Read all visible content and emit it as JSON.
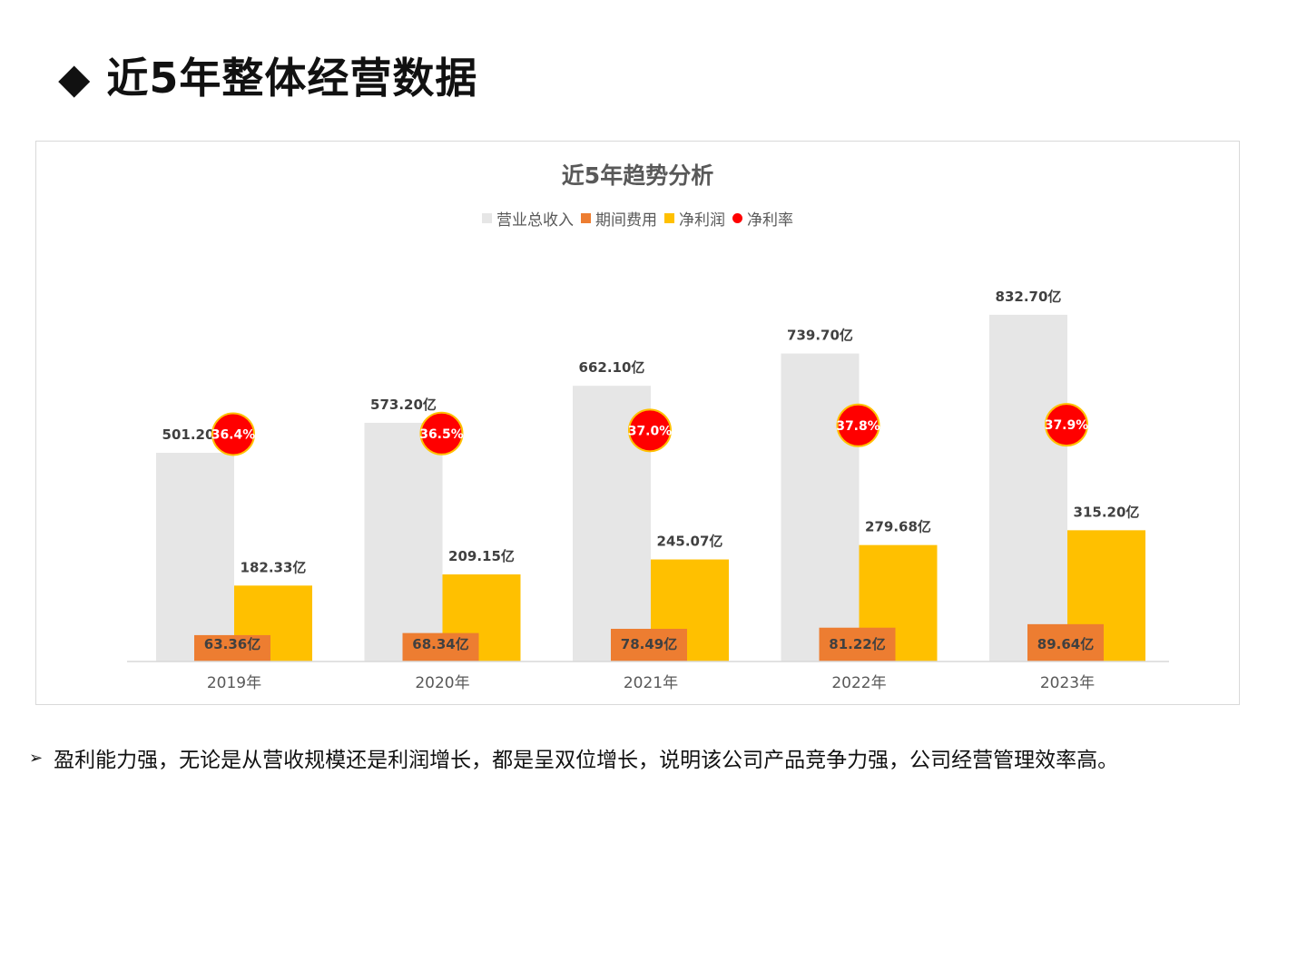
{
  "slide": {
    "title": "◆ 近5年整体经营数据",
    "bullet_marker": "➢",
    "bullet_text": "盈利能力强，无论是从营收规模还是利润增长，都是呈双位增长，说明该公司产品竞争力强，公司经营管理效率高。"
  },
  "chart_data": {
    "type": "bar",
    "title": "近5年趋势分析",
    "categories": [
      "2019年",
      "2020年",
      "2021年",
      "2022年",
      "2023年"
    ],
    "unit_suffix": "亿",
    "legend_position": "top",
    "grid": false,
    "ylim": [
      0,
      900
    ],
    "series": [
      {
        "name": "营业总收入",
        "kind": "bar",
        "color": "#e6e6e6",
        "values": [
          501.2,
          573.2,
          662.1,
          739.7,
          832.7
        ],
        "labels": [
          "501.20亿",
          "573.20亿",
          "662.10亿",
          "739.70亿",
          "832.70亿"
        ]
      },
      {
        "name": "期间费用",
        "kind": "bar",
        "color": "#ed7d31",
        "values": [
          63.36,
          68.34,
          78.49,
          81.22,
          89.64
        ],
        "labels": [
          "63.36亿",
          "68.34亿",
          "78.49亿",
          "81.22亿",
          "89.64亿"
        ]
      },
      {
        "name": "净利润",
        "kind": "bar",
        "color": "#ffc000",
        "values": [
          182.33,
          209.15,
          245.07,
          279.68,
          315.2
        ],
        "labels": [
          "182.33亿",
          "209.15亿",
          "245.07亿",
          "279.68亿",
          "315.20亿"
        ]
      },
      {
        "name": "净利率",
        "kind": "marker",
        "color": "#ff0000",
        "values": [
          36.4,
          36.5,
          37.0,
          37.8,
          37.9
        ],
        "labels": [
          "36.4%",
          "36.5%",
          "37.0%",
          "37.8%",
          "37.9%"
        ]
      }
    ]
  }
}
